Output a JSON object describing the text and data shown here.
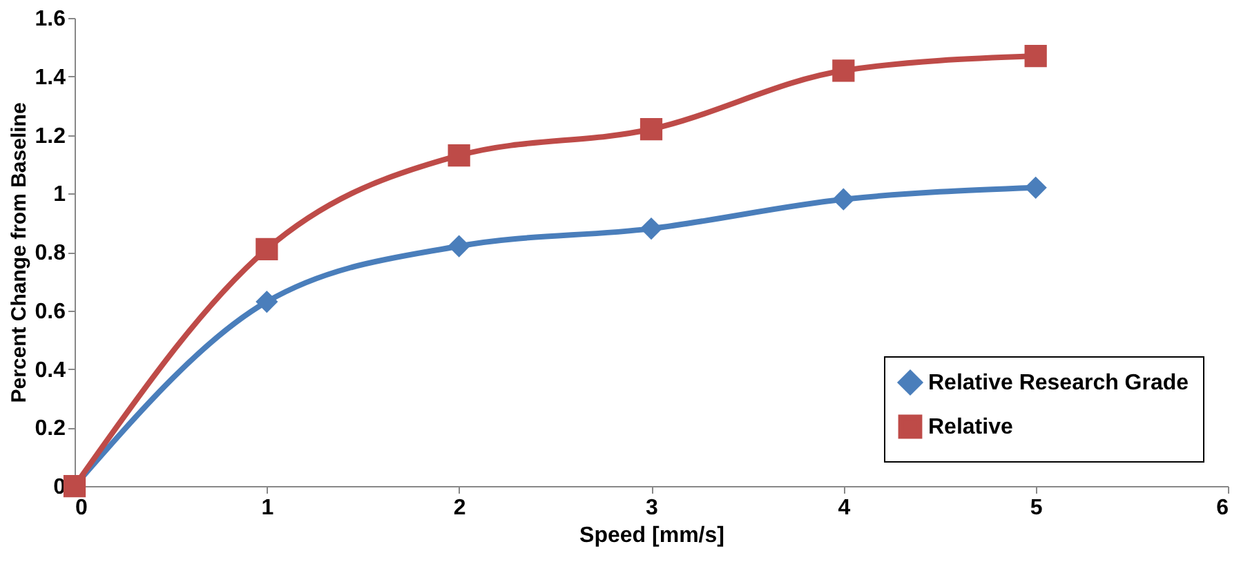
{
  "chart_data": {
    "type": "line",
    "xlabel": "Speed [mm/s]",
    "ylabel": "Percent Change from Baseline",
    "x": [
      0,
      1,
      2,
      3,
      4,
      5
    ],
    "series": [
      {
        "name": "Relative Research Grade",
        "color": "#4a7ebb",
        "marker": "diamond",
        "values": [
          0,
          0.63,
          0.82,
          0.88,
          0.98,
          1.02
        ]
      },
      {
        "name": "Relative",
        "color": "#be4b48",
        "marker": "square",
        "values": [
          0,
          0.81,
          1.13,
          1.22,
          1.42,
          1.47
        ]
      }
    ],
    "xlim": [
      0,
      6
    ],
    "xticks": [
      0,
      1,
      2,
      3,
      4,
      5,
      6
    ],
    "ylim": [
      0,
      1.6
    ],
    "yticks": [
      0,
      0.2,
      0.4,
      0.6,
      0.8,
      1,
      1.2,
      1.4,
      1.6
    ],
    "grid": false,
    "legend": "bottom right"
  }
}
